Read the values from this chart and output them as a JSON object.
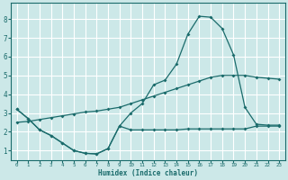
{
  "title": "",
  "xlabel": "Humidex (Indice chaleur)",
  "bg_color": "#cce8e8",
  "grid_color": "#ffffff",
  "line_color": "#1a6b6b",
  "x_ticks": [
    0,
    1,
    2,
    3,
    4,
    5,
    6,
    7,
    8,
    9,
    10,
    11,
    12,
    13,
    14,
    15,
    16,
    17,
    18,
    19,
    20,
    21,
    22,
    23
  ],
  "y_ticks": [
    1,
    2,
    3,
    4,
    5,
    6,
    7,
    8
  ],
  "xlim": [
    -0.5,
    23.5
  ],
  "ylim": [
    0.5,
    8.85
  ],
  "curve1_x": [
    0,
    1,
    2,
    3,
    4,
    5,
    6,
    7,
    8,
    9,
    10,
    11,
    12,
    13,
    14,
    15,
    16,
    17,
    18,
    19,
    20,
    21,
    22,
    23
  ],
  "curve1_y": [
    3.2,
    2.7,
    2.1,
    1.8,
    1.4,
    1.0,
    0.85,
    0.82,
    1.1,
    2.3,
    2.1,
    2.1,
    2.1,
    2.1,
    2.1,
    2.15,
    2.15,
    2.15,
    2.15,
    2.15,
    2.15,
    2.3,
    2.3,
    2.3
  ],
  "curve2_x": [
    0,
    1,
    2,
    3,
    4,
    5,
    6,
    7,
    8,
    9,
    10,
    11,
    12,
    13,
    14,
    15,
    16,
    17,
    18,
    19,
    20,
    21,
    22,
    23
  ],
  "curve2_y": [
    2.5,
    2.55,
    2.65,
    2.75,
    2.85,
    2.95,
    3.05,
    3.1,
    3.2,
    3.3,
    3.5,
    3.7,
    3.9,
    4.1,
    4.3,
    4.5,
    4.7,
    4.9,
    5.0,
    5.0,
    5.0,
    4.9,
    4.85,
    4.8
  ],
  "curve3_x": [
    0,
    1,
    2,
    3,
    4,
    5,
    6,
    7,
    8,
    9,
    10,
    11,
    12,
    13,
    14,
    15,
    16,
    17,
    18,
    19,
    20,
    21,
    22,
    23
  ],
  "curve3_y": [
    3.2,
    2.7,
    2.1,
    1.8,
    1.4,
    1.0,
    0.85,
    0.82,
    1.1,
    2.3,
    3.0,
    3.5,
    4.5,
    4.75,
    5.6,
    7.2,
    8.15,
    8.1,
    7.5,
    6.1,
    3.3,
    2.4,
    2.35,
    2.35
  ]
}
